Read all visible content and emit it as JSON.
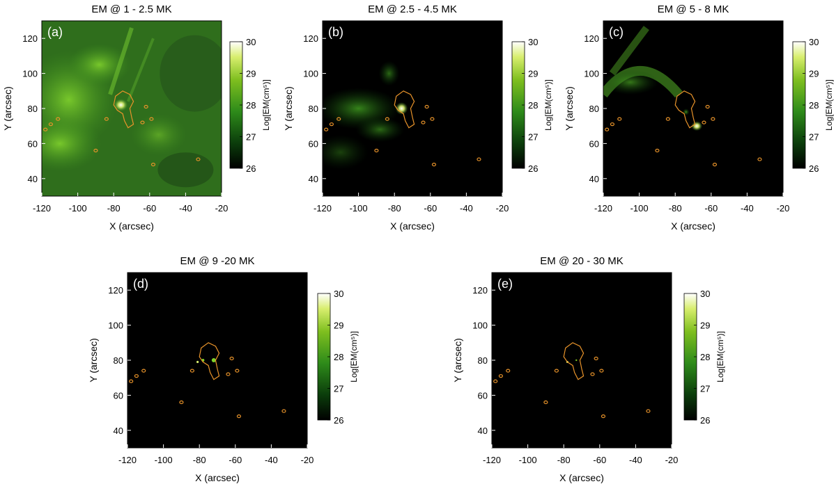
{
  "figure": {
    "panels": [
      {
        "id": "a",
        "label": "(a)",
        "title": "EM @ 1 - 2.5 MK",
        "intensity": "high"
      },
      {
        "id": "b",
        "label": "(b)",
        "title": "EM @ 2.5 - 4.5 MK",
        "intensity": "medium"
      },
      {
        "id": "c",
        "label": "(c)",
        "title": "EM @ 5 - 8 MK",
        "intensity": "medium-low"
      },
      {
        "id": "d",
        "label": "(d)",
        "title": "EM @ 9 -20 MK",
        "intensity": "very-low"
      },
      {
        "id": "e",
        "label": "(e)",
        "title": "EM @ 20 - 30 MK",
        "intensity": "minimal"
      }
    ],
    "x_axis": {
      "label": "X (arcsec)",
      "ticks": [
        "-120",
        "-100",
        "-80",
        "-60",
        "-40",
        "-20"
      ],
      "range": [
        -120,
        -20
      ]
    },
    "y_axis": {
      "label": "Y (arcsec)",
      "ticks": [
        "40",
        "60",
        "80",
        "100",
        "120"
      ],
      "range": [
        30,
        130
      ]
    },
    "colorbar": {
      "label": "Log[EM(cm⁵)]",
      "ticks": [
        "26",
        "27",
        "28",
        "29",
        "30"
      ],
      "range": [
        26,
        30
      ],
      "colors": [
        "#000000",
        "#0b3d0b",
        "#2e8b1a",
        "#7fbf1f",
        "#d8ee6e",
        "#ffffff"
      ]
    },
    "contour_color": "#e8932a"
  }
}
